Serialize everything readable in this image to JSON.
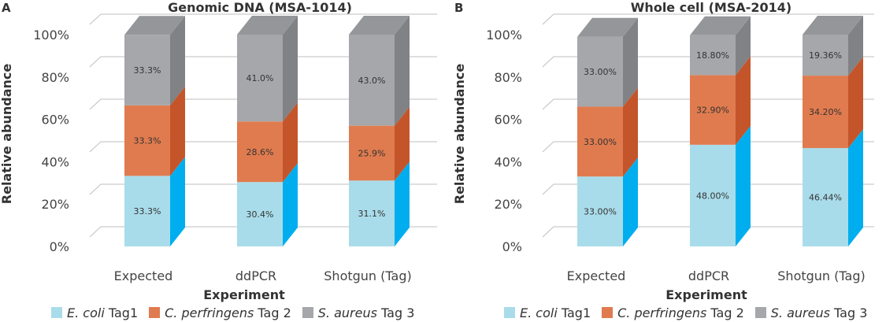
{
  "chart_data": [
    {
      "panel": "A",
      "type": "bar",
      "stacked": true,
      "title": "Genomic DNA (MSA-1014)",
      "xlabel": "Experiment",
      "ylabel": "Relative abundance",
      "ylim": [
        0,
        100
      ],
      "y_ticks": [
        "0%",
        "20%",
        "40%",
        "60%",
        "80%",
        "100%"
      ],
      "categories": [
        "Expected",
        "ddPCR",
        "Shotgun (Tag)"
      ],
      "series": [
        {
          "name": "E. coli Tag1",
          "values": [
            33.3,
            30.4,
            31.1
          ],
          "labels": [
            "33.3%",
            "30.4%",
            "31.1%"
          ]
        },
        {
          "name": "C. perfringens Tag 2",
          "values": [
            33.3,
            28.6,
            25.9
          ],
          "labels": [
            "33.3%",
            "28.6%",
            "25.9%"
          ]
        },
        {
          "name": "S. aureus Tag 3",
          "values": [
            33.3,
            41.0,
            43.0
          ],
          "labels": [
            "33.3%",
            "41.0%",
            "43.0%"
          ]
        }
      ]
    },
    {
      "panel": "B",
      "type": "bar",
      "stacked": true,
      "title": "Whole cell (MSA-2014)",
      "xlabel": "Experiment",
      "ylabel": "Relative abundance",
      "ylim": [
        0,
        100
      ],
      "y_ticks": [
        "0%",
        "20%",
        "40%",
        "60%",
        "80%",
        "100%"
      ],
      "categories": [
        "Expected",
        "ddPCR",
        "Shotgun (Tag)"
      ],
      "series": [
        {
          "name": "E. coli Tag1",
          "values": [
            33.0,
            48.0,
            46.44
          ],
          "labels": [
            "33.00%",
            "48.00%",
            "46.44%"
          ]
        },
        {
          "name": "C. perfringens Tag 2",
          "values": [
            33.0,
            32.9,
            34.2
          ],
          "labels": [
            "33.00%",
            "32.90%",
            "34.20%"
          ]
        },
        {
          "name": "S. aureus Tag 3",
          "values": [
            33.0,
            18.8,
            19.36
          ],
          "labels": [
            "33.00%",
            "18.80%",
            "19.36%"
          ]
        }
      ]
    }
  ],
  "legend": [
    {
      "italic": "E. coli",
      "rest": "Tag1"
    },
    {
      "italic": "C. perfringens",
      "rest": "Tag 2"
    },
    {
      "italic": "S. aureus",
      "rest": "Tag 3"
    }
  ],
  "colors": {
    "series": [
      {
        "front": "#a9dcea",
        "side": "#00aeef",
        "top": "#8fd0e6"
      },
      {
        "front": "#e07b4f",
        "side": "#c4552a",
        "top": "#d86a3e"
      },
      {
        "front": "#a5a7aa",
        "side": "#808285",
        "top": "#949699"
      }
    ],
    "grid": "#bfbfbf",
    "text": "#333333"
  }
}
